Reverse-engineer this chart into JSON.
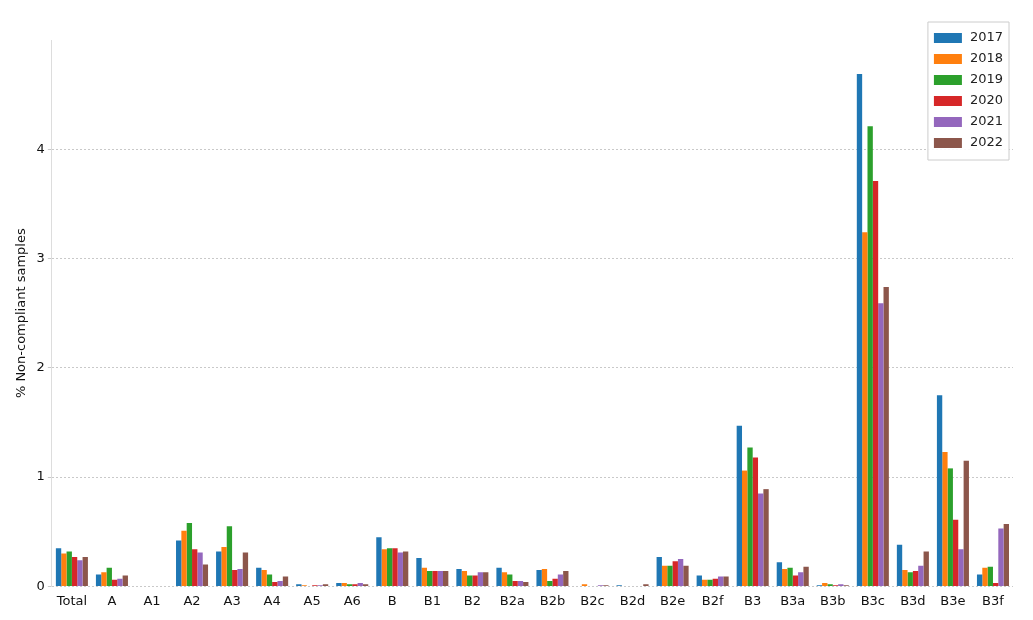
{
  "chart_data": {
    "type": "bar",
    "ylabel": "% Non-compliant samples",
    "categories": [
      "Total",
      "A",
      "A1",
      "A2",
      "A3",
      "A4",
      "A5",
      "A6",
      "B",
      "B1",
      "B2",
      "B2a",
      "B2b",
      "B2c",
      "B2d",
      "B2e",
      "B2f",
      "B3",
      "B3a",
      "B3b",
      "B3c",
      "B3d",
      "B3e",
      "B3f"
    ],
    "series": [
      {
        "name": "2017",
        "color": "#1f77b4",
        "values": [
          0.35,
          0.11,
          0,
          0.42,
          0.32,
          0.17,
          0.02,
          0.03,
          0.45,
          0.26,
          0.16,
          0.17,
          0.15,
          0,
          0.01,
          0.27,
          0.1,
          1.47,
          0.22,
          0.01,
          4.69,
          0.38,
          1.75,
          0.11
        ]
      },
      {
        "name": "2018",
        "color": "#ff7f0e",
        "values": [
          0.3,
          0.13,
          0,
          0.51,
          0.36,
          0.15,
          0.01,
          0.03,
          0.34,
          0.17,
          0.14,
          0.13,
          0.16,
          0.02,
          0,
          0.19,
          0.06,
          1.06,
          0.16,
          0.03,
          3.24,
          0.15,
          1.23,
          0.17
        ]
      },
      {
        "name": "2019",
        "color": "#2ca02c",
        "values": [
          0.32,
          0.17,
          0,
          0.58,
          0.55,
          0.11,
          0,
          0.02,
          0.35,
          0.14,
          0.1,
          0.11,
          0.05,
          0,
          0,
          0.19,
          0.06,
          1.27,
          0.17,
          0.02,
          4.21,
          0.13,
          1.08,
          0.18
        ]
      },
      {
        "name": "2020",
        "color": "#d62728",
        "values": [
          0.27,
          0.06,
          0,
          0.34,
          0.15,
          0.04,
          0.01,
          0.02,
          0.35,
          0.14,
          0.1,
          0.05,
          0.07,
          0,
          0,
          0.23,
          0.07,
          1.18,
          0.1,
          0.01,
          3.71,
          0.14,
          0.61,
          0.03
        ]
      },
      {
        "name": "2021",
        "color": "#9467bd",
        "values": [
          0.24,
          0.07,
          0,
          0.31,
          0.16,
          0.05,
          0.01,
          0.03,
          0.31,
          0.14,
          0.13,
          0.05,
          0.11,
          0.01,
          0,
          0.25,
          0.09,
          0.85,
          0.13,
          0.02,
          2.59,
          0.19,
          0.34,
          0.53
        ]
      },
      {
        "name": "2022",
        "color": "#8c564b",
        "values": [
          0.27,
          0.1,
          0,
          0.2,
          0.31,
          0.09,
          0.02,
          0.02,
          0.32,
          0.14,
          0.13,
          0.04,
          0.14,
          0.01,
          0.02,
          0.19,
          0.09,
          0.89,
          0.18,
          0.01,
          2.74,
          0.32,
          1.15,
          0.57
        ]
      }
    ],
    "ylim": [
      0,
      5
    ],
    "yticks": [
      0,
      1,
      2,
      3,
      4
    ],
    "grid": "y",
    "legend": "top right"
  }
}
